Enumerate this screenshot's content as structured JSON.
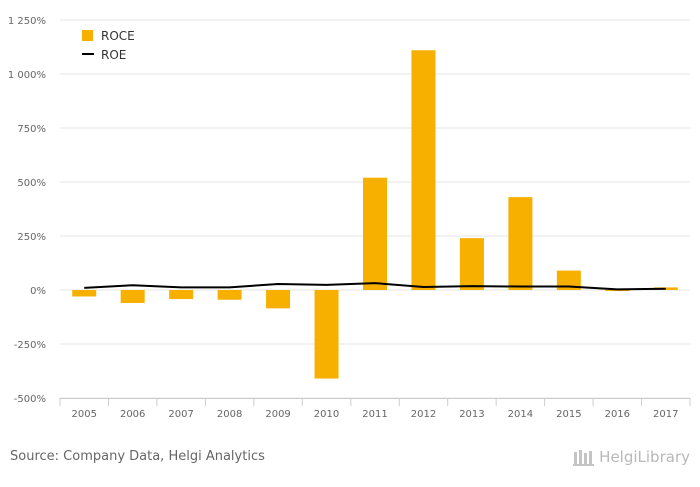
{
  "chart_data": {
    "type": "bar",
    "categories": [
      "2005",
      "2006",
      "2007",
      "2008",
      "2009",
      "2010",
      "2011",
      "2012",
      "2013",
      "2014",
      "2015",
      "2016",
      "2017"
    ],
    "series": [
      {
        "name": "ROCE",
        "kind": "bar",
        "color": "#f7b000",
        "values": [
          -30,
          -60,
          -42,
          -45,
          -85,
          -410,
          520,
          1110,
          240,
          430,
          90,
          -5,
          12
        ]
      },
      {
        "name": "ROE",
        "kind": "line",
        "color": "#000000",
        "values": [
          10,
          22,
          12,
          12,
          28,
          24,
          32,
          14,
          18,
          16,
          16,
          3,
          6
        ]
      }
    ],
    "ylim": [
      -500,
      1250
    ],
    "yticks": [
      -500,
      -250,
      0,
      250,
      500,
      750,
      1000,
      1250
    ],
    "ytick_labels": [
      "-500%",
      "-250%",
      "0%",
      "250%",
      "500%",
      "750%",
      "1 000%",
      "1 250%"
    ],
    "grid": true,
    "legend_position": "top-left"
  },
  "footer": {
    "source": "Source: Company Data, Helgi Analytics",
    "brand": "HelgiLibrary"
  }
}
